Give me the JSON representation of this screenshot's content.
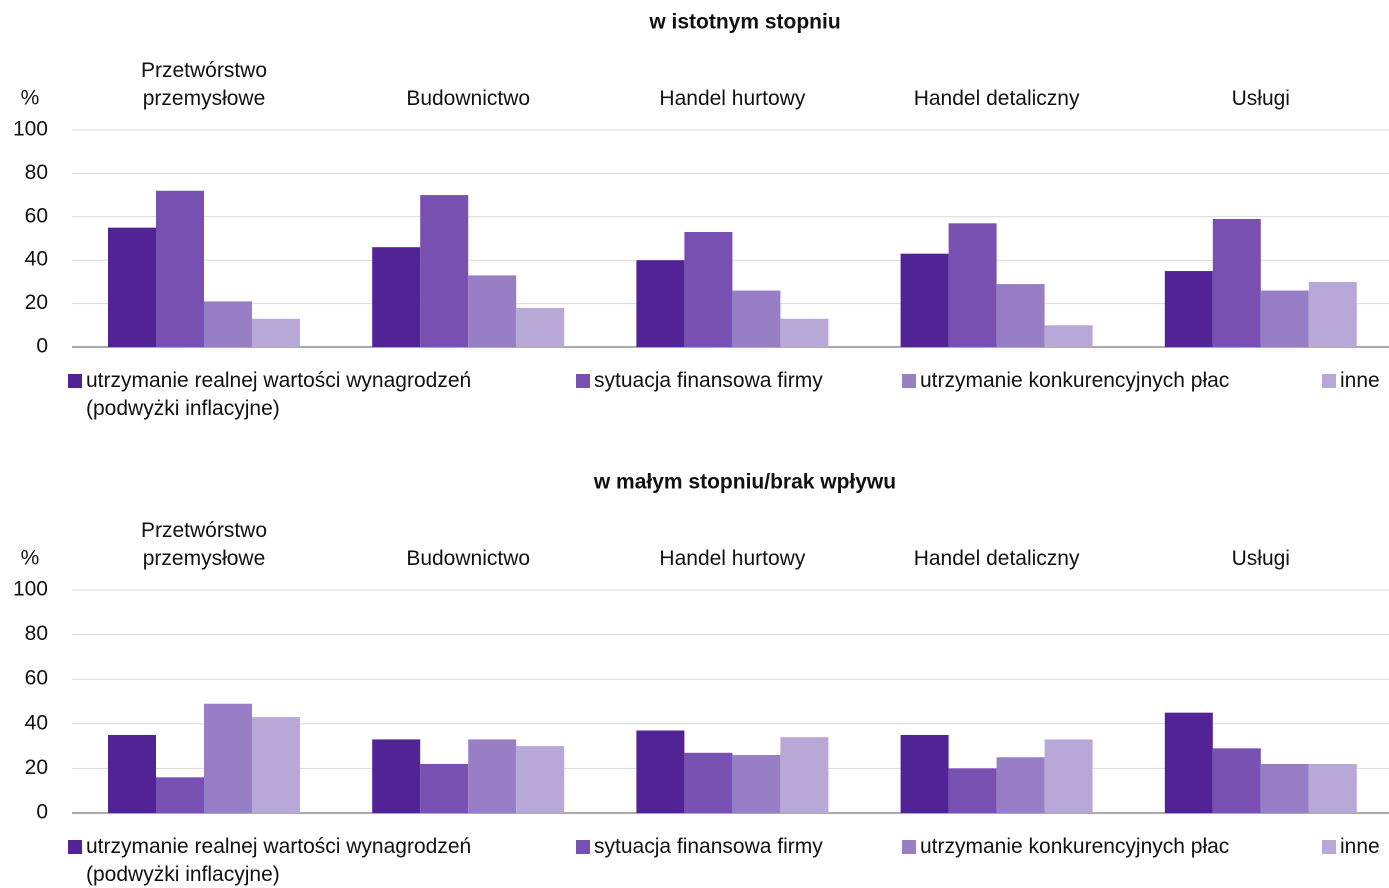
{
  "chart_data": [
    {
      "type": "bar",
      "title": "w istotnym stopniu",
      "ylabel": "%",
      "categories": [
        "Przetwórstwo przemysłowe",
        "Budownictwo",
        "Handel hurtowy",
        "Handel detaliczny",
        "Usługi"
      ],
      "series": [
        {
          "name": "utrzymanie realnej wartości wynagrodzeń (podwyżki inflacyjne)",
          "color": "#512395",
          "values": [
            55,
            46,
            40,
            43,
            35
          ]
        },
        {
          "name": "sytuacja finansowa firmy",
          "color": "#7850b2",
          "values": [
            72,
            70,
            53,
            57,
            59
          ]
        },
        {
          "name": "utrzymanie konkurencyjnych płac",
          "color": "#987ec4",
          "values": [
            21,
            33,
            26,
            29,
            26
          ]
        },
        {
          "name": "inne",
          "color": "#b8a8d8",
          "values": [
            13,
            18,
            13,
            10,
            30
          ]
        }
      ],
      "ylim": [
        0,
        100
      ],
      "yticks": [
        0,
        20,
        40,
        60,
        80,
        100
      ],
      "grid": true,
      "legend": "bottom"
    },
    {
      "type": "bar",
      "title": "w małym stopniu/brak wpływu",
      "ylabel": "%",
      "categories": [
        "Przetwórstwo przemysłowe",
        "Budownictwo",
        "Handel hurtowy",
        "Handel detaliczny",
        "Usługi"
      ],
      "series": [
        {
          "name": "utrzymanie realnej wartości wynagrodzeń (podwyżki inflacyjne)",
          "color": "#512395",
          "values": [
            35,
            33,
            37,
            35,
            45
          ]
        },
        {
          "name": "sytuacja finansowa firmy",
          "color": "#7850b2",
          "values": [
            16,
            22,
            27,
            20,
            29
          ]
        },
        {
          "name": "utrzymanie konkurencyjnych płac",
          "color": "#987ec4",
          "values": [
            49,
            33,
            26,
            25,
            22
          ]
        },
        {
          "name": "inne",
          "color": "#b8a8d8",
          "values": [
            43,
            30,
            34,
            33,
            22
          ]
        }
      ],
      "ylim": [
        0,
        100
      ],
      "yticks": [
        0,
        20,
        40,
        60,
        80,
        100
      ],
      "grid": true,
      "legend": "bottom"
    }
  ]
}
